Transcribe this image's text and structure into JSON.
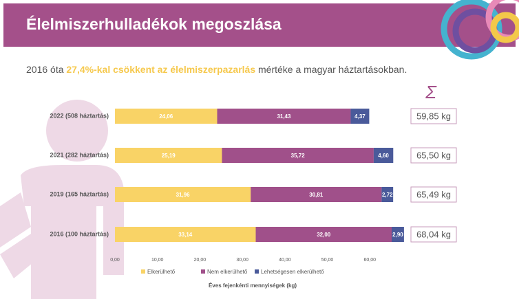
{
  "header": {
    "title": "Élelmiszerhulladékok megoszlása",
    "subtitle": [
      "2016 óta ",
      "27,4%-kal csökkent az élelmiszerpazarlás",
      " mértéke a magyar háztartásokban."
    ]
  },
  "sigma": "Σ",
  "totals": [
    "59,85 kg",
    "65,50 kg",
    "65,49 kg",
    "68,04 kg"
  ],
  "chart_data": {
    "type": "hbar-stacked",
    "categories": [
      "2022 (508 háztartás)",
      "2021 (282 háztartás)",
      "2019 (165 háztartás)",
      "2016 (100 háztartás)"
    ],
    "series": [
      {
        "name": "Elkerülhető",
        "color": "#f9d366",
        "values": [
          24.06,
          25.19,
          31.96,
          33.14
        ],
        "value_labels": [
          "24,06",
          "25,19",
          "31,96",
          "33,14"
        ]
      },
      {
        "name": "Nem elkerülhető",
        "color": "#a0508a",
        "values": [
          31.43,
          35.72,
          30.81,
          32.0
        ],
        "value_labels": [
          "31,43",
          "35,72",
          "30,81",
          "32,00"
        ]
      },
      {
        "name": "Lehetségesen elkerülhető",
        "color": "#4a5a9a",
        "values": [
          4.37,
          4.6,
          2.72,
          2.9
        ],
        "value_labels": [
          "4,37",
          "4,60",
          "2,72",
          "2,90"
        ]
      }
    ],
    "xlim": [
      0,
      70
    ],
    "xticks": [
      {
        "value": 0,
        "label": "0,00"
      },
      {
        "value": 10,
        "label": "10,00"
      },
      {
        "value": 20,
        "label": "20,00"
      },
      {
        "value": 30,
        "label": "30,00"
      },
      {
        "value": 40,
        "label": "40,00"
      },
      {
        "value": 50,
        "label": "50,00"
      },
      {
        "value": 60,
        "label": "60,00"
      }
    ],
    "xlabel": "Éves fejenkénti mennyiségek (kg)",
    "legend": "bottom"
  }
}
